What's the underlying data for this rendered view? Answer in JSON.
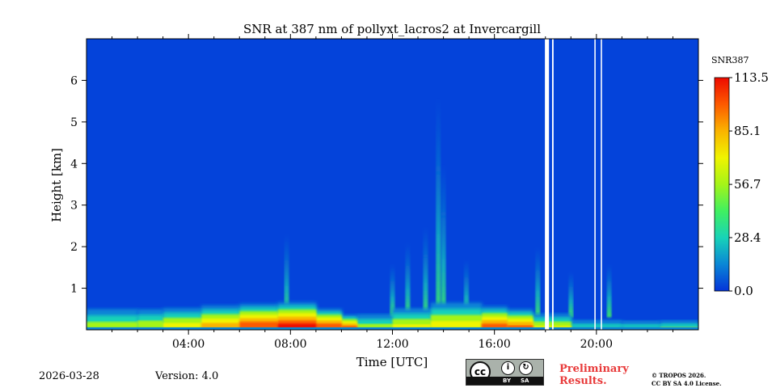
{
  "chart_data": {
    "type": "heatmap",
    "title": "SNR at 387 nm of pollyxt_lacros2 at Invercargill",
    "xlabel": "Time [UTC]",
    "ylabel": "Height [km]",
    "xlim": [
      0,
      24
    ],
    "ylim": [
      0,
      7
    ],
    "xticks": [
      4,
      8,
      12,
      16,
      20
    ],
    "xticklabels": [
      "04:00",
      "08:00",
      "12:00",
      "16:00",
      "20:00"
    ],
    "yticks": [
      1,
      2,
      3,
      4,
      5,
      6
    ],
    "yticklabels": [
      "1",
      "2",
      "3",
      "4",
      "5",
      "6"
    ],
    "colorbar": {
      "label": "SNR387",
      "min": 0.0,
      "max": 113.5,
      "ticks": [
        0.0,
        28.4,
        56.7,
        85.1,
        113.5
      ],
      "ticklabels": [
        "0.0",
        "28.4",
        "56.7",
        "85.1",
        "113.5"
      ],
      "colors": [
        "#0433d9",
        "#0a86d6",
        "#18d3b8",
        "#40f060",
        "#a5f418",
        "#f0f400",
        "#fab300",
        "#fd5a00",
        "#ee0a00"
      ]
    },
    "missing_data_hours": [
      [
        17.98,
        18.14
      ],
      [
        18.26,
        18.32
      ],
      [
        19.92,
        19.97
      ],
      [
        20.17,
        20.22
      ]
    ],
    "boundary_layer": [
      {
        "t": 0.0,
        "top_km": 0.6,
        "peak_snr": 55
      },
      {
        "t": 2.0,
        "top_km": 0.58,
        "peak_snr": 60
      },
      {
        "t": 3.0,
        "top_km": 0.6,
        "peak_snr": 70
      },
      {
        "t": 4.5,
        "top_km": 0.65,
        "peak_snr": 85
      },
      {
        "t": 6.0,
        "top_km": 0.68,
        "peak_snr": 105
      },
      {
        "t": 7.5,
        "top_km": 0.72,
        "peak_snr": 110
      },
      {
        "t": 9.0,
        "top_km": 0.55,
        "peak_snr": 105
      },
      {
        "t": 10.0,
        "top_km": 0.4,
        "peak_snr": 100
      },
      {
        "t": 10.6,
        "top_km": 0.45,
        "peak_snr": 55
      },
      {
        "t": 12.0,
        "top_km": 0.6,
        "peak_snr": 65
      },
      {
        "t": 13.5,
        "top_km": 0.75,
        "peak_snr": 70
      },
      {
        "t": 15.5,
        "top_km": 0.62,
        "peak_snr": 100
      },
      {
        "t": 16.5,
        "top_km": 0.55,
        "peak_snr": 95
      },
      {
        "t": 17.5,
        "top_km": 0.45,
        "peak_snr": 65
      },
      {
        "t": 19.0,
        "top_km": 0.3,
        "peak_snr": 45
      },
      {
        "t": 21.0,
        "top_km": 0.28,
        "peak_snr": 45
      },
      {
        "t": 22.5,
        "top_km": 0.28,
        "peak_snr": 50
      },
      {
        "t": 24.0,
        "top_km": 0.3,
        "peak_snr": 50
      }
    ],
    "plumes": [
      {
        "t": 7.85,
        "top_km": 2.3,
        "snr": 40
      },
      {
        "t": 12.0,
        "top_km": 1.6,
        "snr": 25
      },
      {
        "t": 12.6,
        "top_km": 2.1,
        "snr": 25
      },
      {
        "t": 13.3,
        "top_km": 2.5,
        "snr": 28
      },
      {
        "t": 13.8,
        "top_km": 5.6,
        "snr": 25
      },
      {
        "t": 14.0,
        "top_km": 4.0,
        "snr": 30
      },
      {
        "t": 14.9,
        "top_km": 1.7,
        "snr": 22
      },
      {
        "t": 17.7,
        "top_km": 2.0,
        "snr": 25
      },
      {
        "t": 19.0,
        "top_km": 1.4,
        "snr": 20
      },
      {
        "t": 20.5,
        "top_km": 1.6,
        "snr": 18
      }
    ]
  },
  "footer": {
    "date": "2026-03-28",
    "version": "Version: 4.0",
    "license_badge": {
      "cc": "cc",
      "by": "BY",
      "sa": "SA"
    },
    "preliminary_line1": "Preliminary",
    "preliminary_line2": "Results.",
    "copyright_line1": "© TROPOS 2026.",
    "copyright_line2": "CC BY SA 4.0 License."
  }
}
